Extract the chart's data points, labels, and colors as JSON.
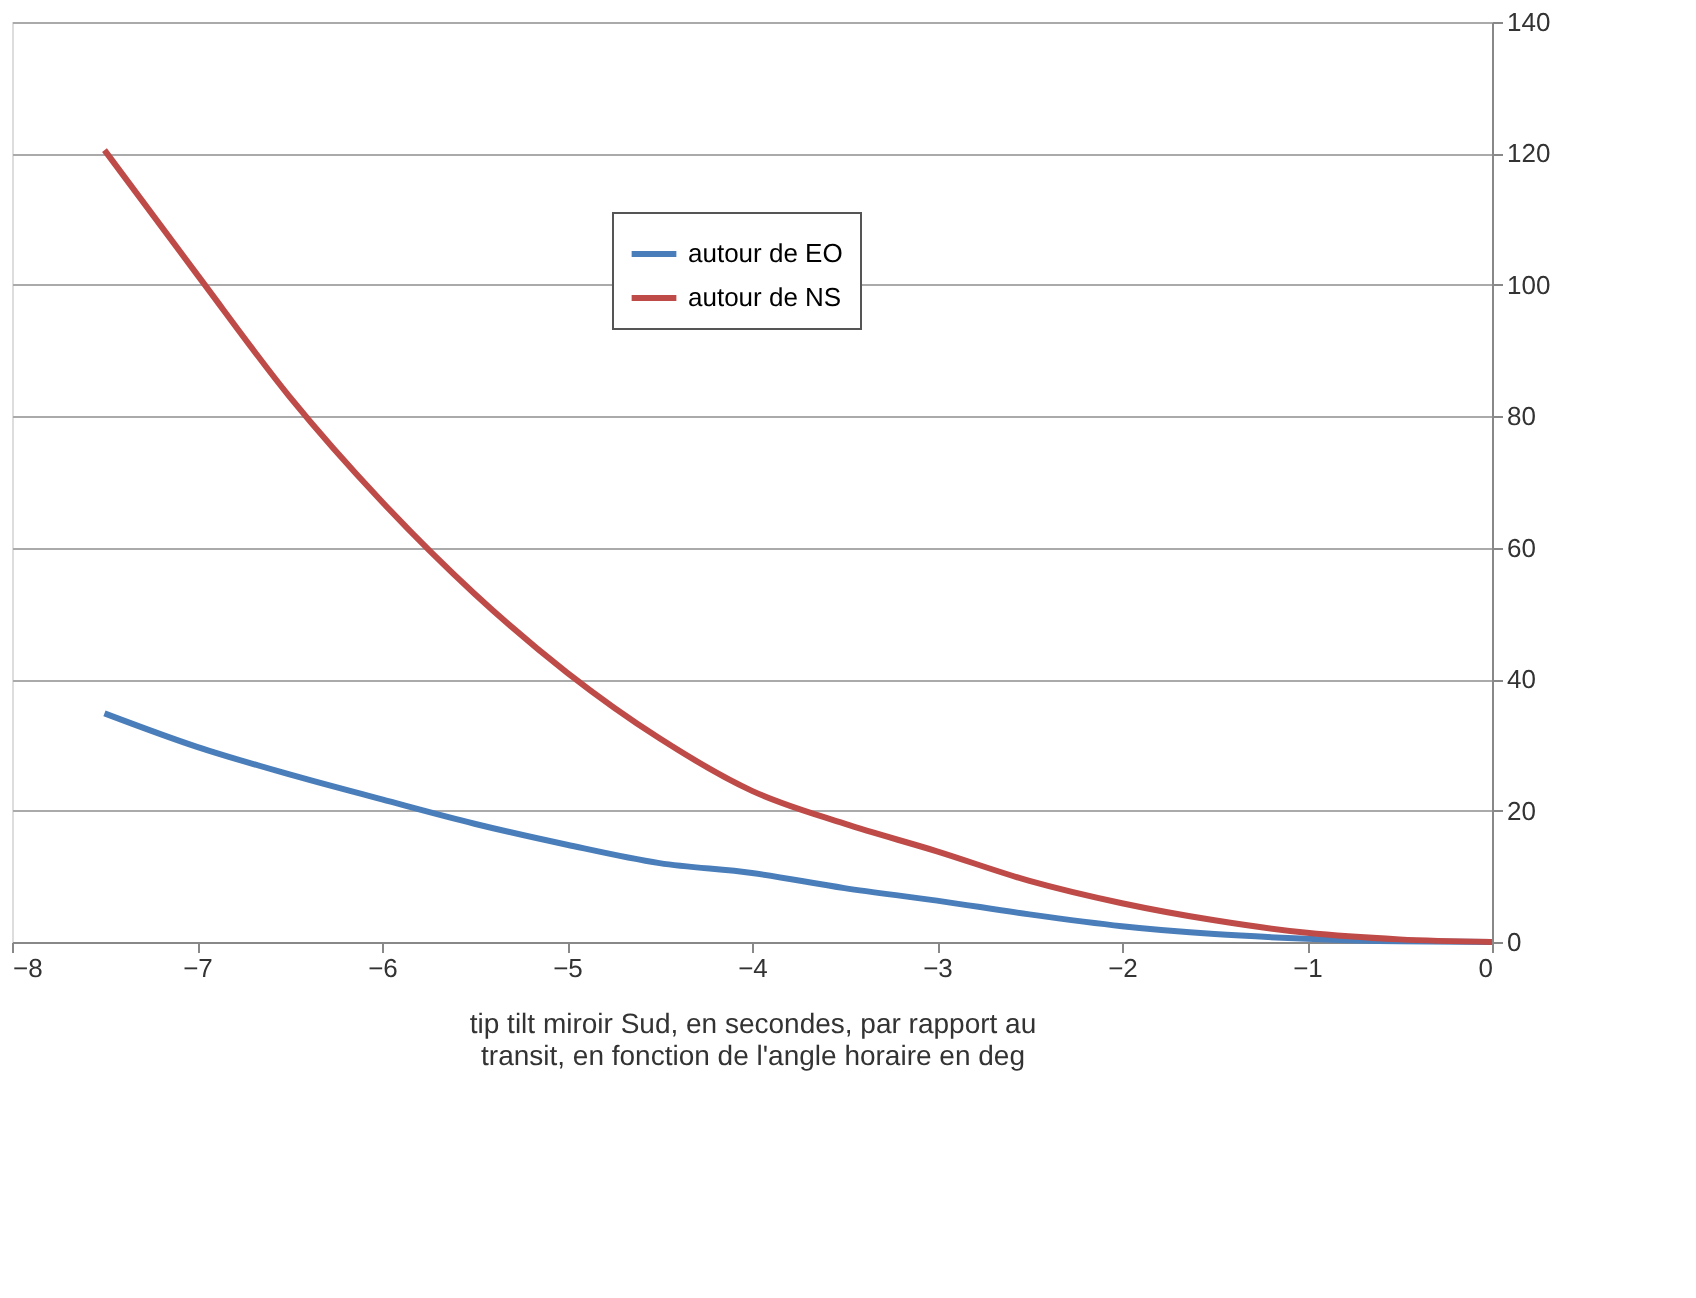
{
  "chart_data": {
    "type": "line",
    "xlabel": "tip tilt miroir Sud, en secondes, par rapport au\ntransit, en fonction de l'angle horaire en deg",
    "x": [
      -7.5,
      -7,
      -6.5,
      -6,
      -5.5,
      -5,
      -4.5,
      -4,
      -3.5,
      -3,
      -2.5,
      -2,
      -1.5,
      -1,
      -0.5,
      0
    ],
    "series": [
      {
        "name": "autour de EO",
        "color": "#4a7ebb",
        "values": [
          34.8,
          29.7,
          25.5,
          21.7,
          18,
          14.8,
          12,
          10.5,
          8.2,
          6.3,
          4.2,
          2.4,
          1.2,
          0.5,
          0.1,
          0
        ]
      },
      {
        "name": "autour de NS",
        "color": "#be4b48",
        "values": [
          120.5,
          101.6,
          83,
          67,
          53,
          41,
          31,
          23,
          18,
          13.8,
          9.3,
          5.9,
          3.3,
          1.4,
          0.4,
          0
        ]
      }
    ],
    "xlim": [
      -8,
      0
    ],
    "xticks": [
      -8,
      -7,
      -6,
      -5,
      -4,
      -3,
      -2,
      -1,
      0
    ],
    "ylim": [
      0,
      140
    ],
    "yticks": [
      0,
      20,
      40,
      60,
      80,
      100,
      120,
      140
    ],
    "grid": "y",
    "legend": "top",
    "marker": "none",
    "line_style": "solid"
  }
}
